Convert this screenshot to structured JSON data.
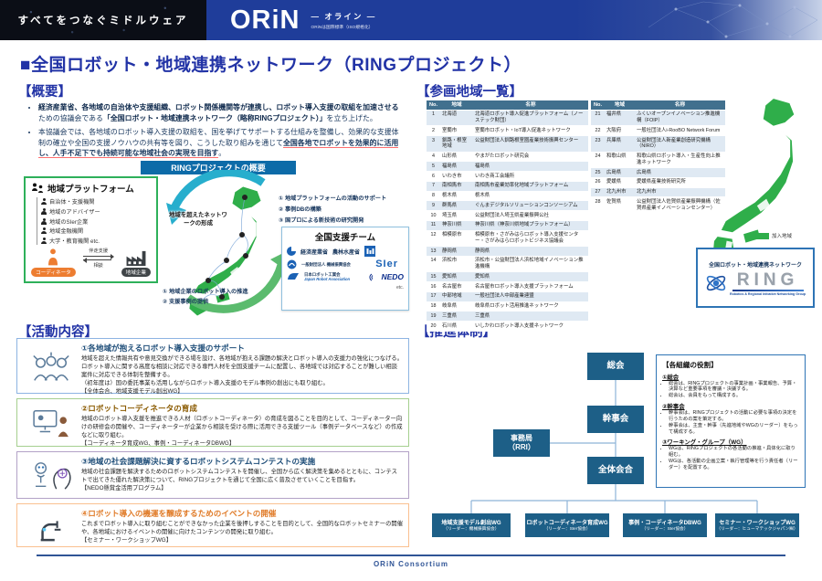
{
  "header": {
    "tagline": "すべてをつなぐミドルウェア",
    "logo": "ORiN",
    "logo_ruby": "— オライン —",
    "logo_caption": "ORiNは国際標準（ISO規格化）"
  },
  "title": "■全国ロボット・地域連携ネットワーク（RINGプロジェクト）",
  "overview": {
    "heading": "【概要】",
    "b1_bold1": "経済産業省、各地域の自治体や支援組織、ロボット関係機関等が連携し、ロボット導入支援の取組を加速させる",
    "b1_mid": "ための協議会である",
    "b1_bold2": "「全国ロボット・地域連携ネットワーク（略称RINGプロジェクト）」",
    "b1_end": "を立ち上げた。",
    "b2_pre": "本協議会では、各地域のロボット導入支援の取組を、国を挙げてサポートする仕組みを整備し、効果的な支援体制の確立や全国の支援ノウハウの共有等を図り、こうした取り組みを通じて",
    "b2_em": "全国各地でロボットを効果的に活用し、人手不足下でも持続可能な地域社会の実現を目指す",
    "b2_end": "。"
  },
  "diagram": {
    "bar": "RINGプロジェクトの概要",
    "platform": {
      "title": "地域プラットフォーム",
      "items": [
        "自治体・支援機関",
        "地域のアドバイザー",
        "地域のSIer企業",
        "地域金融機関",
        "大学・教育機関  etc."
      ],
      "coordinator": "コーディネータ",
      "company": "地域企業",
      "arrow_support": "伴走支援",
      "arrow_consult": "相談"
    },
    "center_label": "地域を超えたネットワークの形成",
    "right_notes": [
      "① 地域プラットフォームの活動のサポート",
      "② 事例DBの構築",
      "③ 国プロによる新技術の研究開発"
    ],
    "bottom_notes": [
      "① 地域企業のロボット導入の推進",
      "② 支援事例の提供"
    ],
    "support": {
      "title": "全国支援チーム",
      "meti": "経済産業省",
      "maff": "農林水産省",
      "kikai": "一般財団法人 機械振興協会",
      "sier": "SIer",
      "jara_jp": "日本ロボット工業会",
      "jara_en": "Japan Robot Association",
      "nedo": "NEDO",
      "etc": "etc."
    }
  },
  "regions": {
    "heading": "【参画地域一覧】",
    "headers": [
      "No.",
      "地域",
      "名称"
    ],
    "legend": "加入地域",
    "rows": [
      {
        "no": "1",
        "region": "北海道",
        "name": "北海道ロボット導入促進プラットフォーム（ノーステック財団）"
      },
      {
        "no": "2",
        "region": "室蘭市",
        "name": "室蘭市ロボット・IoT導入促進ネットワーク"
      },
      {
        "no": "3",
        "region": "釧路・根室地域",
        "name": "公益財団法人釧路根室圏産業技術振興センター"
      },
      {
        "no": "4",
        "region": "山形県",
        "name": "やまがたロボット研究会"
      },
      {
        "no": "5",
        "region": "福島県",
        "name": "福島県"
      },
      {
        "no": "6",
        "region": "いわき市",
        "name": "いわき商工会議所"
      },
      {
        "no": "7",
        "region": "南相馬市",
        "name": "南相馬市産業効率化地域プラットフォーム"
      },
      {
        "no": "8",
        "region": "栃木県",
        "name": "栃木県"
      },
      {
        "no": "9",
        "region": "群馬県",
        "name": "ぐんまデジタルソリューションコンソーシアム"
      },
      {
        "no": "10",
        "region": "埼玉県",
        "name": "公益財団法人埼玉県産業振興公社"
      },
      {
        "no": "11",
        "region": "神奈川県",
        "name": "神奈川県（神奈川県地域プラットフォーム）"
      },
      {
        "no": "12",
        "region": "相模原市",
        "name": "相模原市・さがみはらロボット導入支援センター・さがみはらロボットビジネス協議会"
      },
      {
        "no": "13",
        "region": "静岡県",
        "name": "静岡県"
      },
      {
        "no": "14",
        "region": "浜松市",
        "name": "浜松市・公益財団法人浜松地域イノベーション推進機構"
      },
      {
        "no": "15",
        "region": "愛知県",
        "name": "愛知県"
      },
      {
        "no": "16",
        "region": "名古屋市",
        "name": "名古屋市ロボット導入支援プラットフォーム"
      },
      {
        "no": "17",
        "region": "中部地域",
        "name": "一般社団法人中部産業連盟"
      },
      {
        "no": "18",
        "region": "岐阜県",
        "name": "岐阜県ロボット活用推進ネットワーク"
      },
      {
        "no": "19",
        "region": "三重県",
        "name": "三重県"
      },
      {
        "no": "20",
        "region": "石川県",
        "name": "いしかわロボット導入支援ネットワーク"
      },
      {
        "no": "21",
        "region": "福井県",
        "name": "ふくいオープンイノベーション推進機構（FOIP）"
      },
      {
        "no": "22",
        "region": "大阪府",
        "name": "一般社団法人i-RooBO Network Forum"
      },
      {
        "no": "23",
        "region": "兵庫県",
        "name": "公益財団法人新産業創造研究機構（NIRO）"
      },
      {
        "no": "24",
        "region": "和歌山県",
        "name": "和歌山県ロボット導入・生産性向上推進ネットワーク"
      },
      {
        "no": "25",
        "region": "広島県",
        "name": "広島県"
      },
      {
        "no": "26",
        "region": "愛媛県",
        "name": "愛媛県産業技術研究所"
      },
      {
        "no": "27",
        "region": "北九州市",
        "name": "北九州市"
      },
      {
        "no": "28",
        "region": "佐賀県",
        "name": "公益財団法人佐賀県産業振興機構（佐賀県産業イノベーションセンター）"
      }
    ]
  },
  "ring_badge": {
    "line1": "全国ロボット・地域連携ネットワーク",
    "logo": "RING",
    "caption": "Robotics & Regional Initiative Networking Group"
  },
  "activities": {
    "heading": "【活動内容】",
    "items": [
      {
        "title": "①各地域が抱えるロボット導入支援のサポート",
        "body": "地域を超えた情報共有や意見交換ができる場を設け、各地域が抱える課題の解決とロボット導入の支援力の強化につなげる。ロボット導入に関する高度な相談に対応できる専門人材を全国支援チームに配置し、各地域では対応することが難しい相談案件に対応できる体制を整備する。",
        "note": "（初年度は）国の委託事業も活用しながらロボット導入支援のモデル事例の創出にも取り組む。",
        "tag": "【全体会合、地域支援モデル創出WG】"
      },
      {
        "title": "②ロボットコーディネータの育成",
        "body": "地域のロボット導入支援を推進できる人材（ロボットコーディネータ）の育成を図ることを目的として、コーディネーター向けの研修会の開催や、コーディネーターが企業から相談を受ける際に活用できる支援ツール（事例データベースなど）の作成などに取り組む。",
        "note": "",
        "tag": "【コーディネータ育成WG、事例・コーディネータDBWG】"
      },
      {
        "title": "③地域の社会課題解決に資するロボットシステムコンテストの実施",
        "body": "地域の社会課題を解決するためのロボットシステムコンテストを開催し、全国から広く解決策を集めるとともに、コンテストで出てきた優れた解決策について、RINGプロジェクトを通じて全国に広く普及させていくことを目指す。",
        "note": "",
        "tag": "【NEDO懸賞金活用プログラム】"
      },
      {
        "title": "④ロボット導入の機運を醸成するためのイベントの開催",
        "body": "これまでロボット導入に取り組むことができなかった企業を後押しすることを目的として、全国的なロボットセミナーの開催や、各地域におけるイベントの開催に向けたコンテンツの開発に取り組む。",
        "note": "",
        "tag": "【セミナー・ワークショップWG】"
      }
    ]
  },
  "structure": {
    "heading": "【推進体制】",
    "nodes": {
      "sokai": "総会",
      "kanji": "幹事会",
      "jimu1": "事務局",
      "jimu2": "（RRI）",
      "zentai": "全体会合"
    },
    "wgs": [
      {
        "title": "地域支援モデル創出WG",
        "leader": "（リーダー：機械振興協会）"
      },
      {
        "title": "ロボットコーディネータ育成WG",
        "leader": "（リーダー：SIer協会）"
      },
      {
        "title": "事例・コーディネータDBWG",
        "leader": "（リーダー：SIer協会）"
      },
      {
        "title": "セミナー・ワークショップWG",
        "leader": "（リーダー：ヒューマテックジャパン㈱）"
      }
    ],
    "roles": {
      "title": "【各組織の役割】",
      "sections": [
        {
          "head": "①総会",
          "bullets": [
            "総会は、RINGプロジェクトの事業計画・事業報告、予算・決算など重要事項を審議・決議する。",
            "総会は、会員をもって構成する。"
          ]
        },
        {
          "head": "②幹事会",
          "bullets": [
            "幹事会は、RINGプロジェクトの活動に必要な事項の決定を行うための案を策定する。",
            "幹事会は、主査・幹事（先進地域やWGのリーダー）をもって構成する。"
          ]
        },
        {
          "head": "③ワーキング・グループ（WG）",
          "bullets": [
            "WGは、RINGプロジェクトの各活動の推進・具体化に取り組む。",
            "WGは、各活動の企画立案・執行管理等を行う責任者（リーダー）を配置する。"
          ]
        }
      ]
    }
  },
  "footer": {
    "text": "ORiN Consortium"
  }
}
